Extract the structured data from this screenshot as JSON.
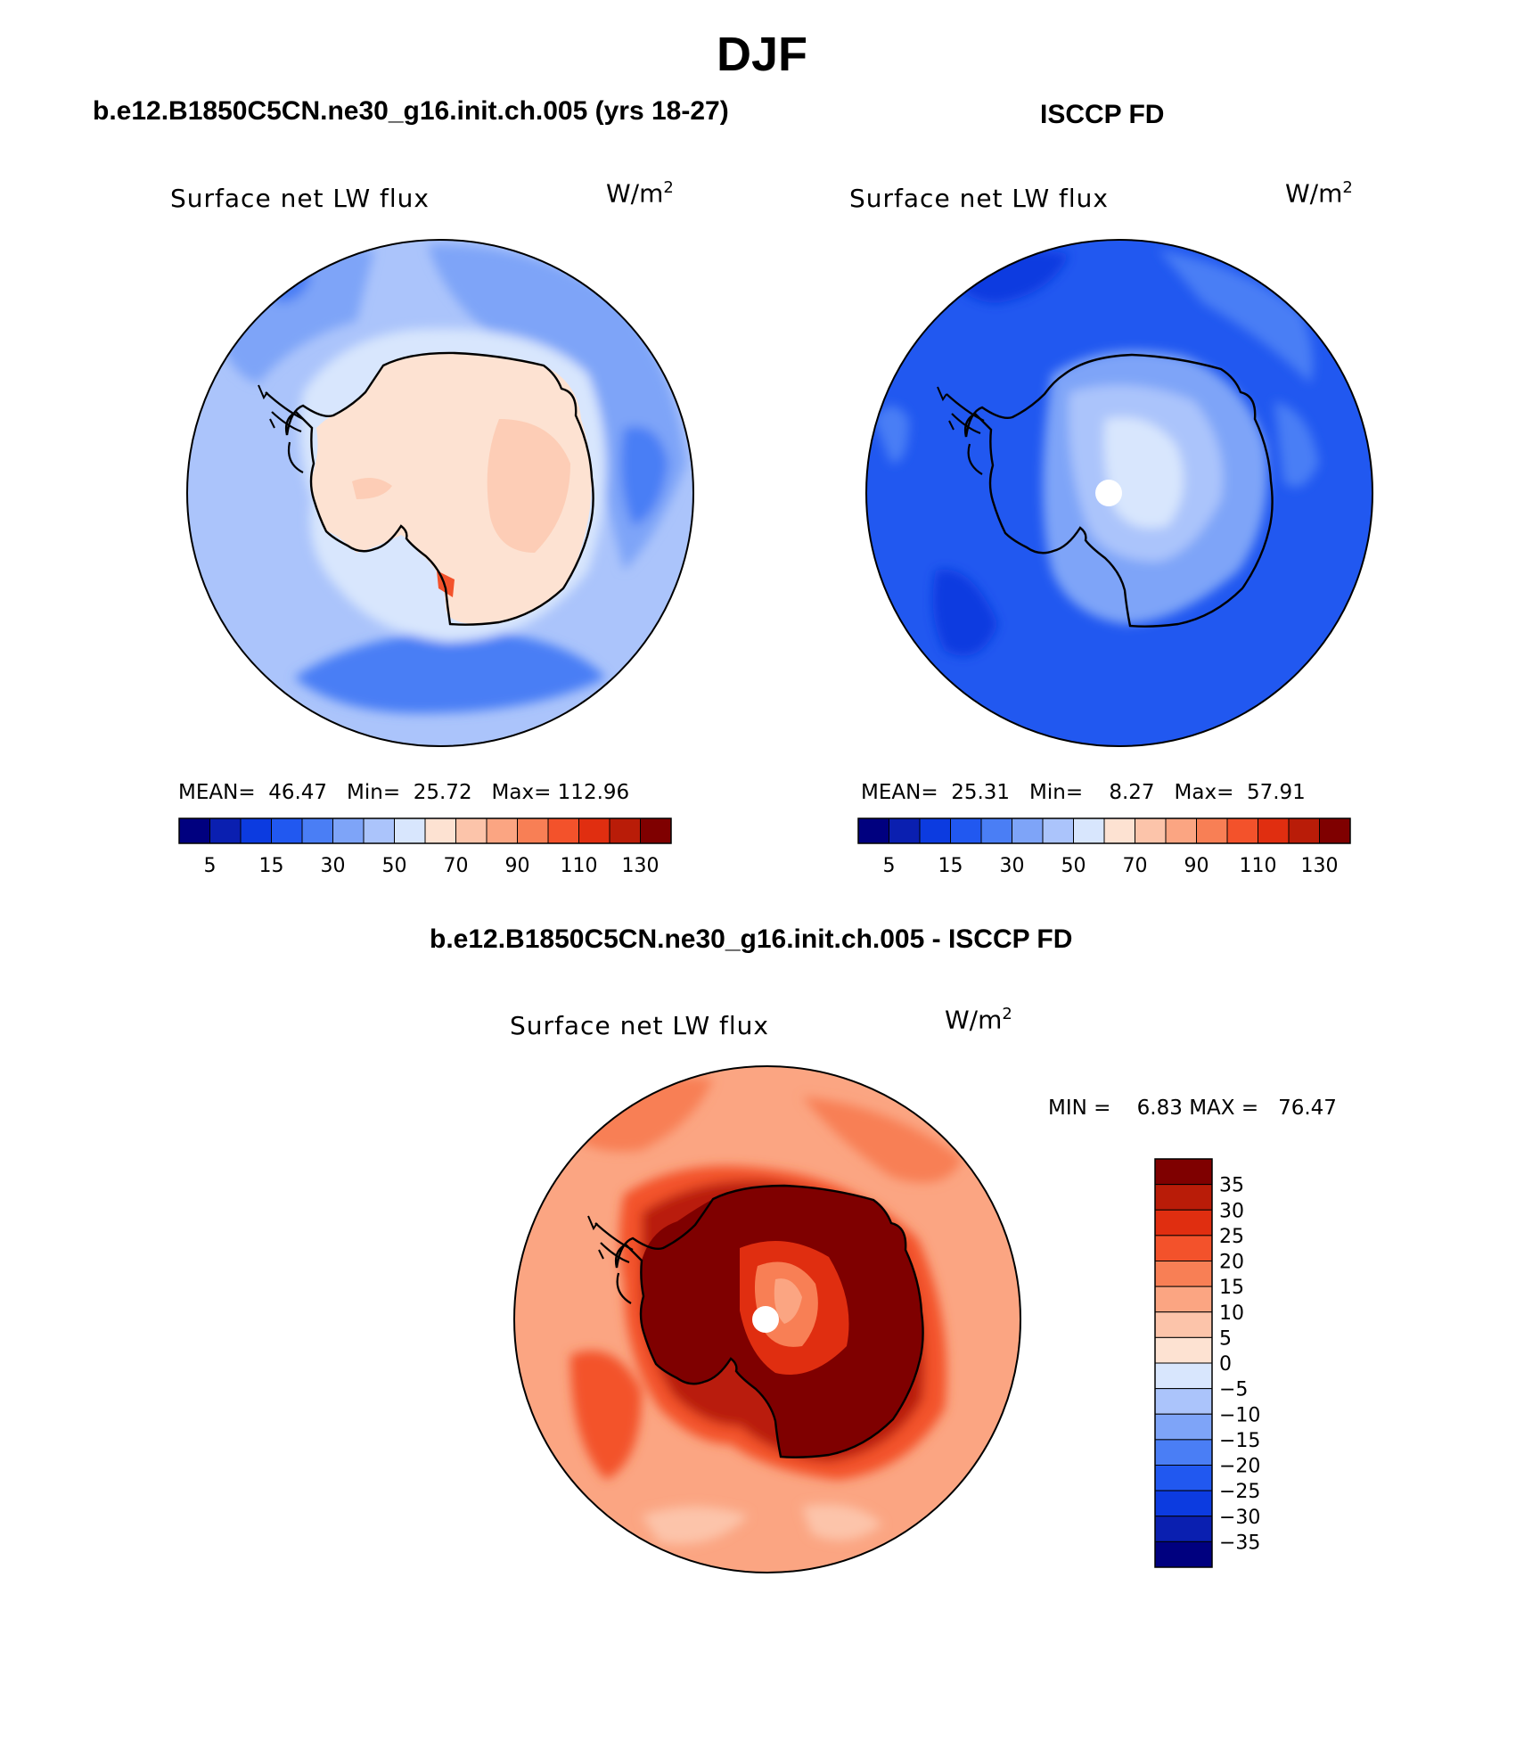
{
  "title": "DJF",
  "panels": [
    {
      "id": "model",
      "header": "b.e12.B1850C5CN.ne30_g16.init.ch.005 (yrs 18-27)",
      "map_title": "Surface net LW flux",
      "units_base": "W/m",
      "units_exp": "2",
      "stats": {
        "mean_label": "MEAN=",
        "mean": "46.47",
        "min_label": "Min=",
        "min": "25.72",
        "max_label": "Max=",
        "max": "112.96"
      },
      "colorbar_ticks": [
        "5",
        "15",
        "30",
        "50",
        "70",
        "90",
        "110",
        "130"
      ]
    },
    {
      "id": "obs",
      "header": "ISCCP FD",
      "map_title": "Surface net LW flux",
      "units_base": "W/m",
      "units_exp": "2",
      "stats": {
        "mean_label": "MEAN=",
        "mean": "25.31",
        "min_label": "Min=",
        "min": "8.27",
        "max_label": "Max=",
        "max": "57.91"
      },
      "colorbar_ticks": [
        "5",
        "15",
        "30",
        "50",
        "70",
        "90",
        "110",
        "130"
      ]
    },
    {
      "id": "diff",
      "header": "b.e12.B1850C5CN.ne30_g16.init.ch.005 - ISCCP FD",
      "map_title": "Surface net LW flux",
      "units_base": "W/m",
      "units_exp": "2",
      "minmax": {
        "min_label": "MIN =",
        "min": "6.83",
        "max_label": "MAX =",
        "max": "76.47"
      },
      "colorbar_ticks": [
        "35",
        "30",
        "25",
        "20",
        "15",
        "10",
        "5",
        "0",
        "−5",
        "−10",
        "−15",
        "−20",
        "−25",
        "−30",
        "−35"
      ]
    }
  ],
  "colors": {
    "abs_scale": [
      "#00007f",
      "#0a1fb0",
      "#0c3be0",
      "#2158f0",
      "#4a7ef5",
      "#7ea4f8",
      "#abc4fb",
      "#d8e6fd",
      "#fde2d2",
      "#fcc4aa",
      "#fba582",
      "#f87f55",
      "#f3522b",
      "#e02e10",
      "#b91c08",
      "#7f0000"
    ],
    "diff_scale": [
      "#7f0000",
      "#b91c08",
      "#e02e10",
      "#f3522b",
      "#f87f55",
      "#fba582",
      "#fcc4aa",
      "#fde2d2",
      "#d8e6fd",
      "#abc4fb",
      "#7ea4f8",
      "#4a7ef5",
      "#2158f0",
      "#0c3be0",
      "#0a1fb0",
      "#00007f"
    ]
  }
}
